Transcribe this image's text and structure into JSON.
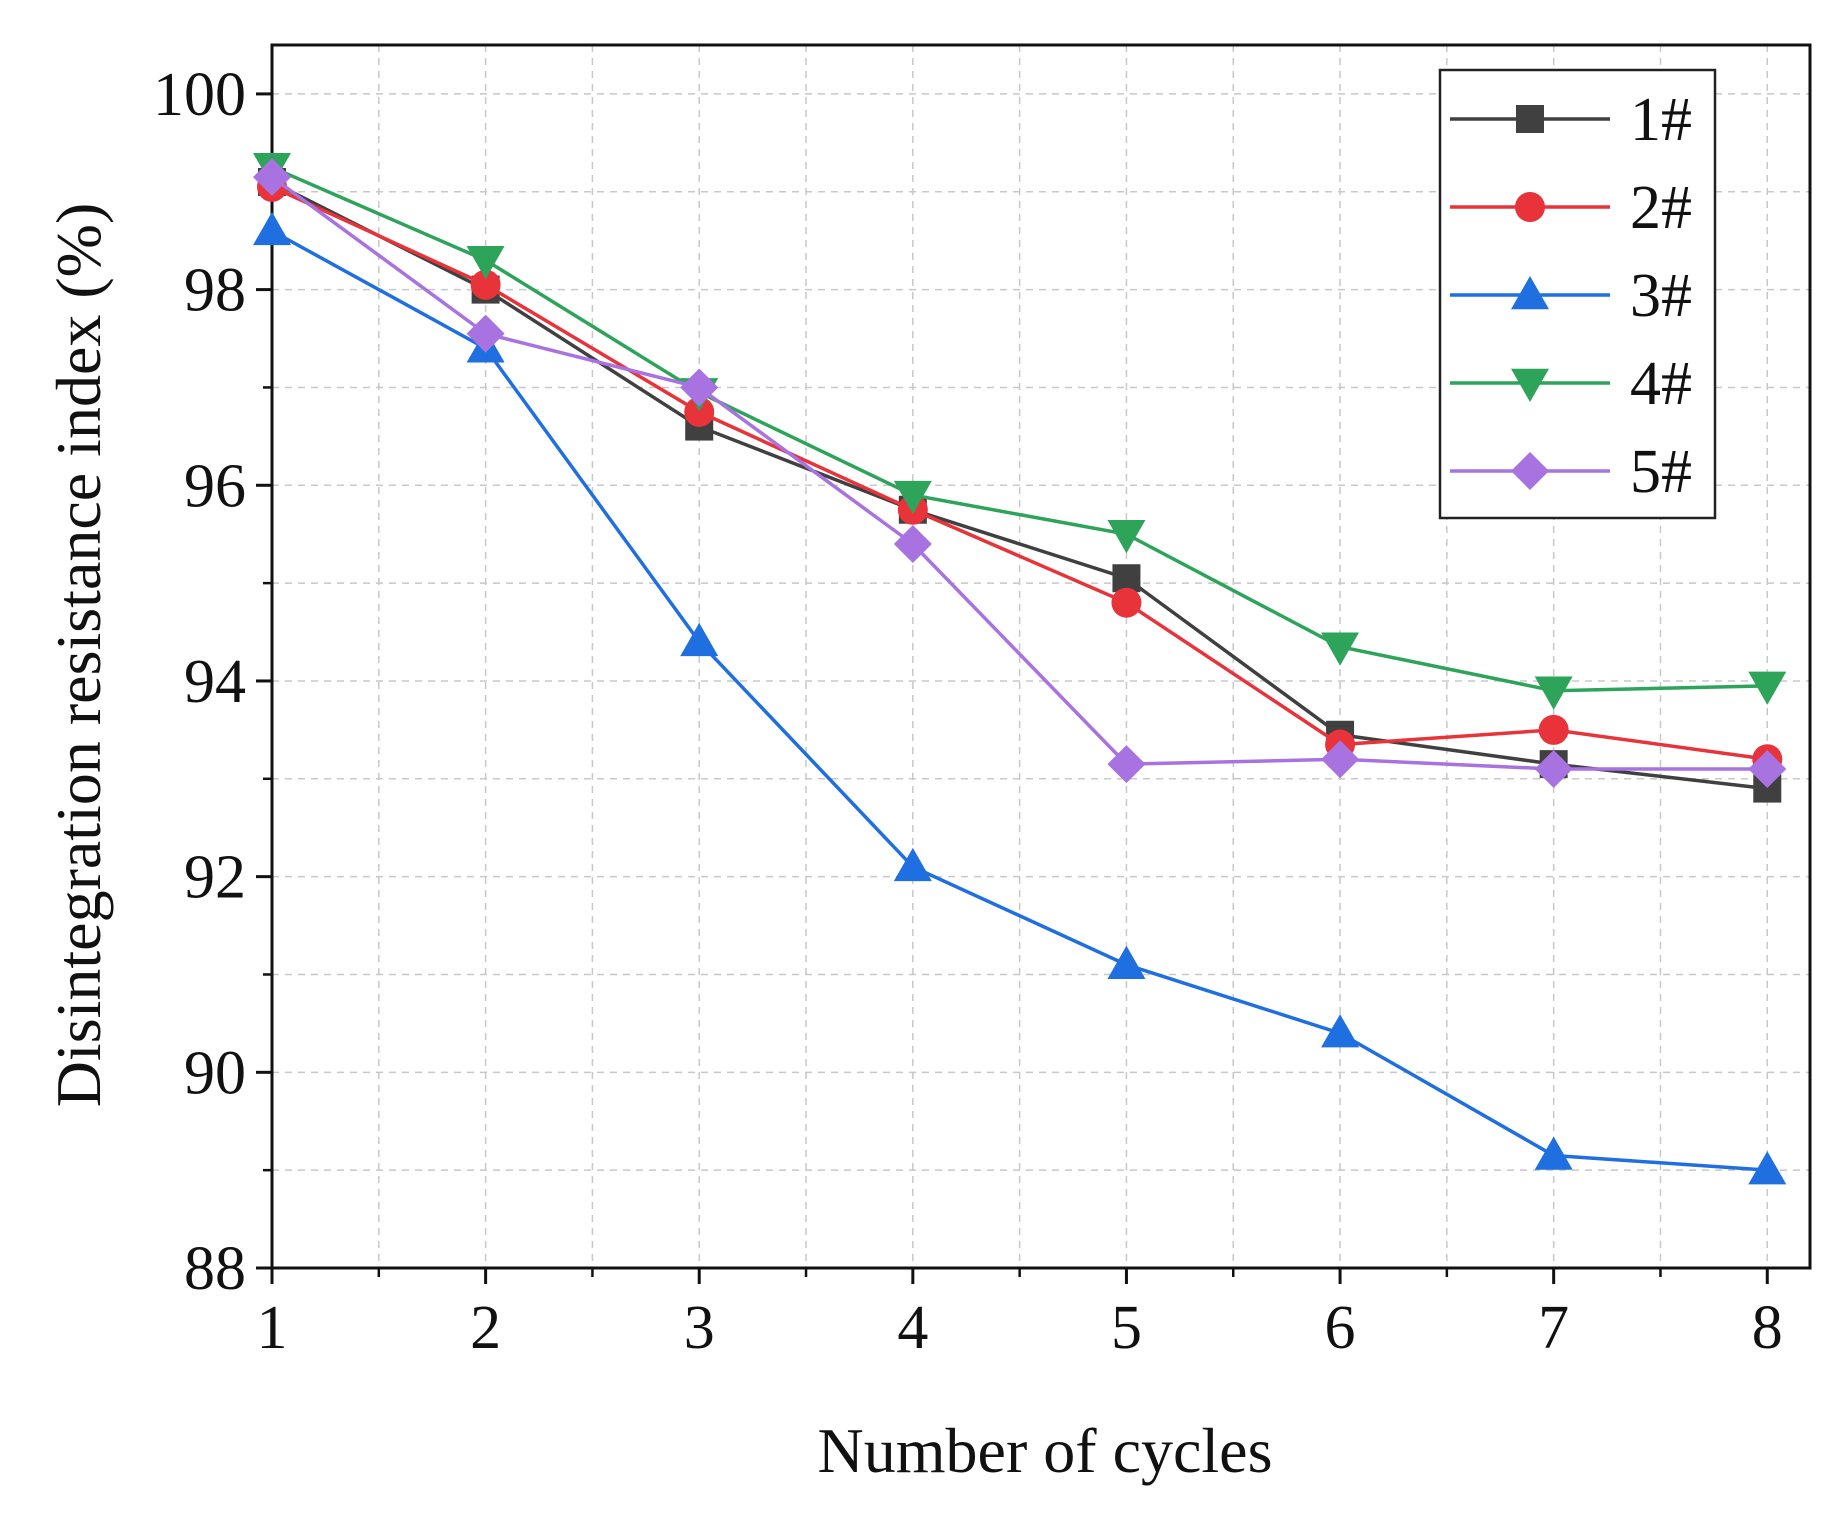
{
  "chart_data": {
    "type": "line",
    "title": "",
    "xlabel": "Number of cycles",
    "ylabel": "Disintegration resistance index (%)",
    "x": [
      1,
      2,
      3,
      4,
      5,
      6,
      7,
      8
    ],
    "xlim": [
      1,
      8.2
    ],
    "ylim": [
      88,
      100.5
    ],
    "x_ticks": [
      "1",
      "2",
      "3",
      "4",
      "5",
      "6",
      "7",
      "8"
    ],
    "y_ticks": [
      "88",
      "90",
      "92",
      "94",
      "96",
      "98",
      "100"
    ],
    "grid": true,
    "legend_position": "top-right",
    "series": [
      {
        "name": "1#",
        "color": "#404040",
        "marker": "square",
        "values": [
          99.1,
          98.0,
          96.6,
          95.75,
          95.05,
          93.45,
          93.15,
          92.9
        ]
      },
      {
        "name": "2#",
        "color": "#e8333a",
        "marker": "circle",
        "values": [
          99.05,
          98.05,
          96.75,
          95.75,
          94.8,
          93.35,
          93.5,
          93.2
        ]
      },
      {
        "name": "3#",
        "color": "#1f6fe0",
        "marker": "triangle-up",
        "values": [
          98.6,
          97.4,
          94.4,
          92.1,
          91.1,
          90.4,
          89.15,
          89.0
        ]
      },
      {
        "name": "4#",
        "color": "#2ea35a",
        "marker": "triangle-down",
        "values": [
          99.25,
          98.3,
          96.95,
          95.9,
          95.5,
          94.35,
          93.9,
          93.95
        ]
      },
      {
        "name": "5#",
        "color": "#a873e0",
        "marker": "diamond",
        "values": [
          99.15,
          97.55,
          97.0,
          95.4,
          93.15,
          93.2,
          93.1,
          93.1
        ]
      }
    ]
  }
}
